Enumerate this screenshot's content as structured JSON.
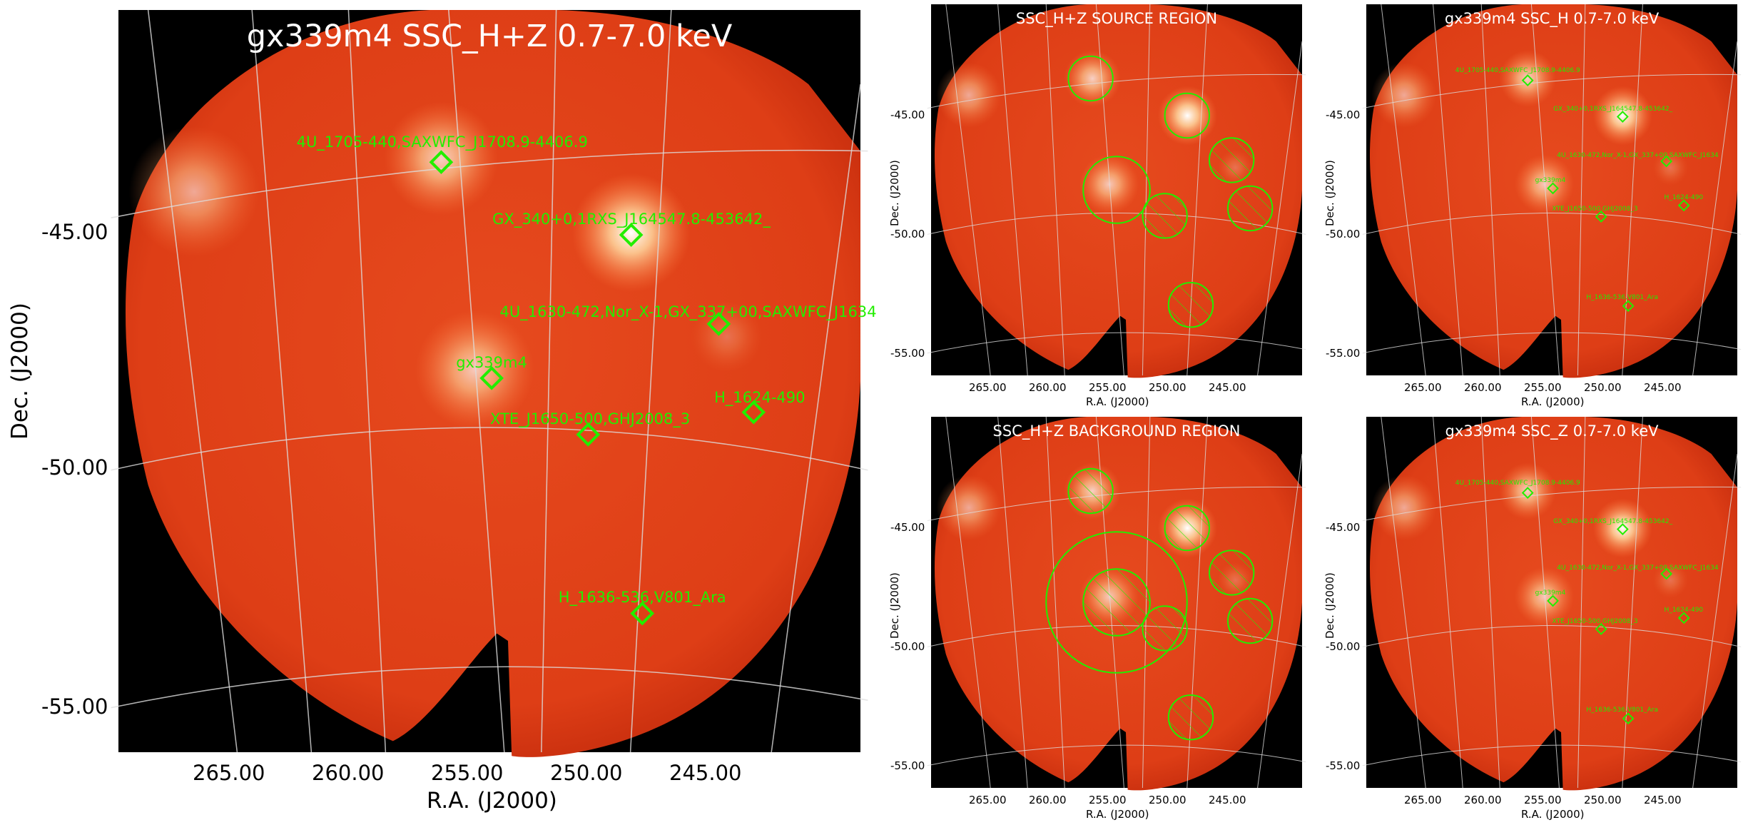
{
  "main": {
    "title": "gx339m4 SSC_H+Z 0.7-7.0 keV",
    "xlabel": "R.A. (J2000)",
    "ylabel": "Dec. (J2000)",
    "xticks": [
      "265.00",
      "260.00",
      "255.00",
      "250.00",
      "245.00"
    ],
    "yticks": [
      "-45.00",
      "-50.00",
      "-55.00"
    ],
    "sources": [
      {
        "name": "4U_1705-440,SAXWFC_J1708.9-4406.9"
      },
      {
        "name": "GX_340+0,1RXS_J164547.8-453642_"
      },
      {
        "name": "4U_1630-472,Nor_X-1,GX_337+00,SAXWFC_J1634"
      },
      {
        "name": "gx339m4"
      },
      {
        "name": "H_1624-490"
      },
      {
        "name": "XTE_J1650-500,GHJ2008_3"
      },
      {
        "name": "H_1636-536,V801_Ara"
      }
    ]
  },
  "source_region": {
    "title": "SSC_H+Z SOURCE REGION",
    "xlabel": "R.A. (J2000)",
    "ylabel": "Dec. (J2000)",
    "xticks": [
      "265.00",
      "260.00",
      "255.00",
      "250.00",
      "245.00"
    ],
    "yticks": [
      "-45.00",
      "-50.00",
      "-55.00"
    ]
  },
  "background_region": {
    "title": "SSC_H+Z BACKGROUND REGION",
    "xlabel": "R.A. (J2000)",
    "ylabel": "Dec. (J2000)",
    "xticks": [
      "265.00",
      "260.00",
      "255.00",
      "250.00",
      "245.00"
    ],
    "yticks": [
      "-45.00",
      "-50.00",
      "-55.00"
    ]
  },
  "ssc_h": {
    "title": "gx339m4 SSC_H 0.7-7.0 keV",
    "xlabel": "R.A. (J2000)",
    "ylabel": "Dec. (J2000)",
    "xticks": [
      "265.00",
      "260.00",
      "255.00",
      "250.00",
      "245.00"
    ],
    "yticks": [
      "-45.00",
      "-50.00",
      "-55.00"
    ]
  },
  "ssc_z": {
    "title": "gx339m4 SSC_Z 0.7-7.0 keV",
    "xlabel": "R.A. (J2000)",
    "ylabel": "Dec. (J2000)",
    "xticks": [
      "265.00",
      "260.00",
      "255.00",
      "250.00",
      "245.00"
    ],
    "yticks": [
      "-45.00",
      "-50.00",
      "-55.00"
    ]
  },
  "colors": {
    "map": "#e0401a",
    "region": "#22ee00",
    "grid": "#dddddd"
  }
}
